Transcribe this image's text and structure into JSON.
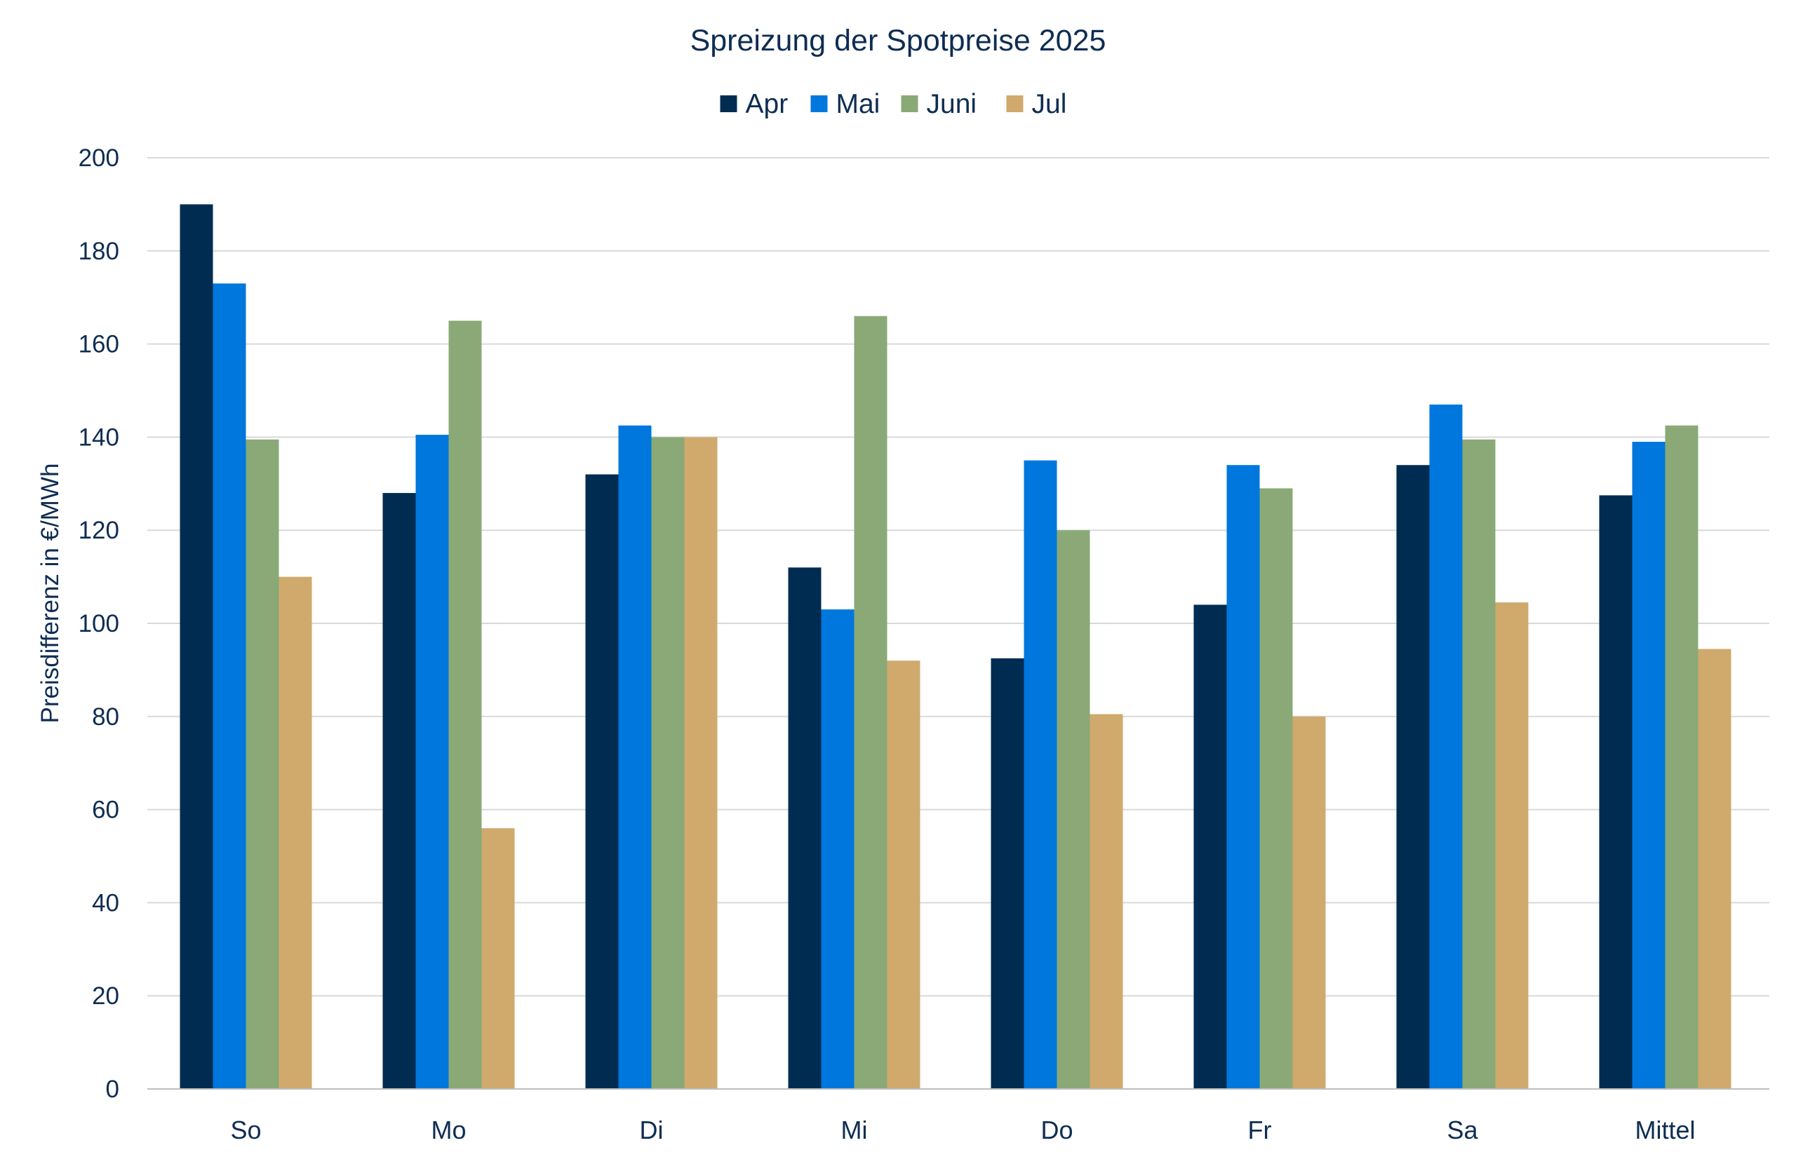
{
  "chart_data": {
    "type": "bar",
    "title": "Spreizung der Spotpreise 2025",
    "xlabel": "",
    "ylabel": "Preisdifferenz in €/MWh",
    "ylim": [
      0,
      200
    ],
    "yticks": [
      0,
      20,
      40,
      60,
      80,
      100,
      120,
      140,
      160,
      180,
      200
    ],
    "grid": true,
    "legend_position": "top-center",
    "categories": [
      "So",
      "Mo",
      "Di",
      "Mi",
      "Do",
      "Fr",
      "Sa",
      "Mittel"
    ],
    "series": [
      {
        "name": "Apr",
        "color": "#002c52",
        "values": [
          190,
          128,
          132,
          112,
          92.5,
          104,
          134,
          127.5
        ]
      },
      {
        "name": "Mai",
        "color": "#0077dd",
        "values": [
          173,
          140.5,
          142.5,
          103,
          135,
          134,
          147,
          139
        ]
      },
      {
        "name": "Juni",
        "color": "#8aa976",
        "values": [
          139.5,
          165,
          140,
          166,
          120,
          129,
          139.5,
          142.5
        ]
      },
      {
        "name": "Jul",
        "color": "#d0a96d",
        "values": [
          110,
          56,
          140,
          92,
          80.5,
          80,
          104.5,
          94.5
        ]
      }
    ]
  }
}
